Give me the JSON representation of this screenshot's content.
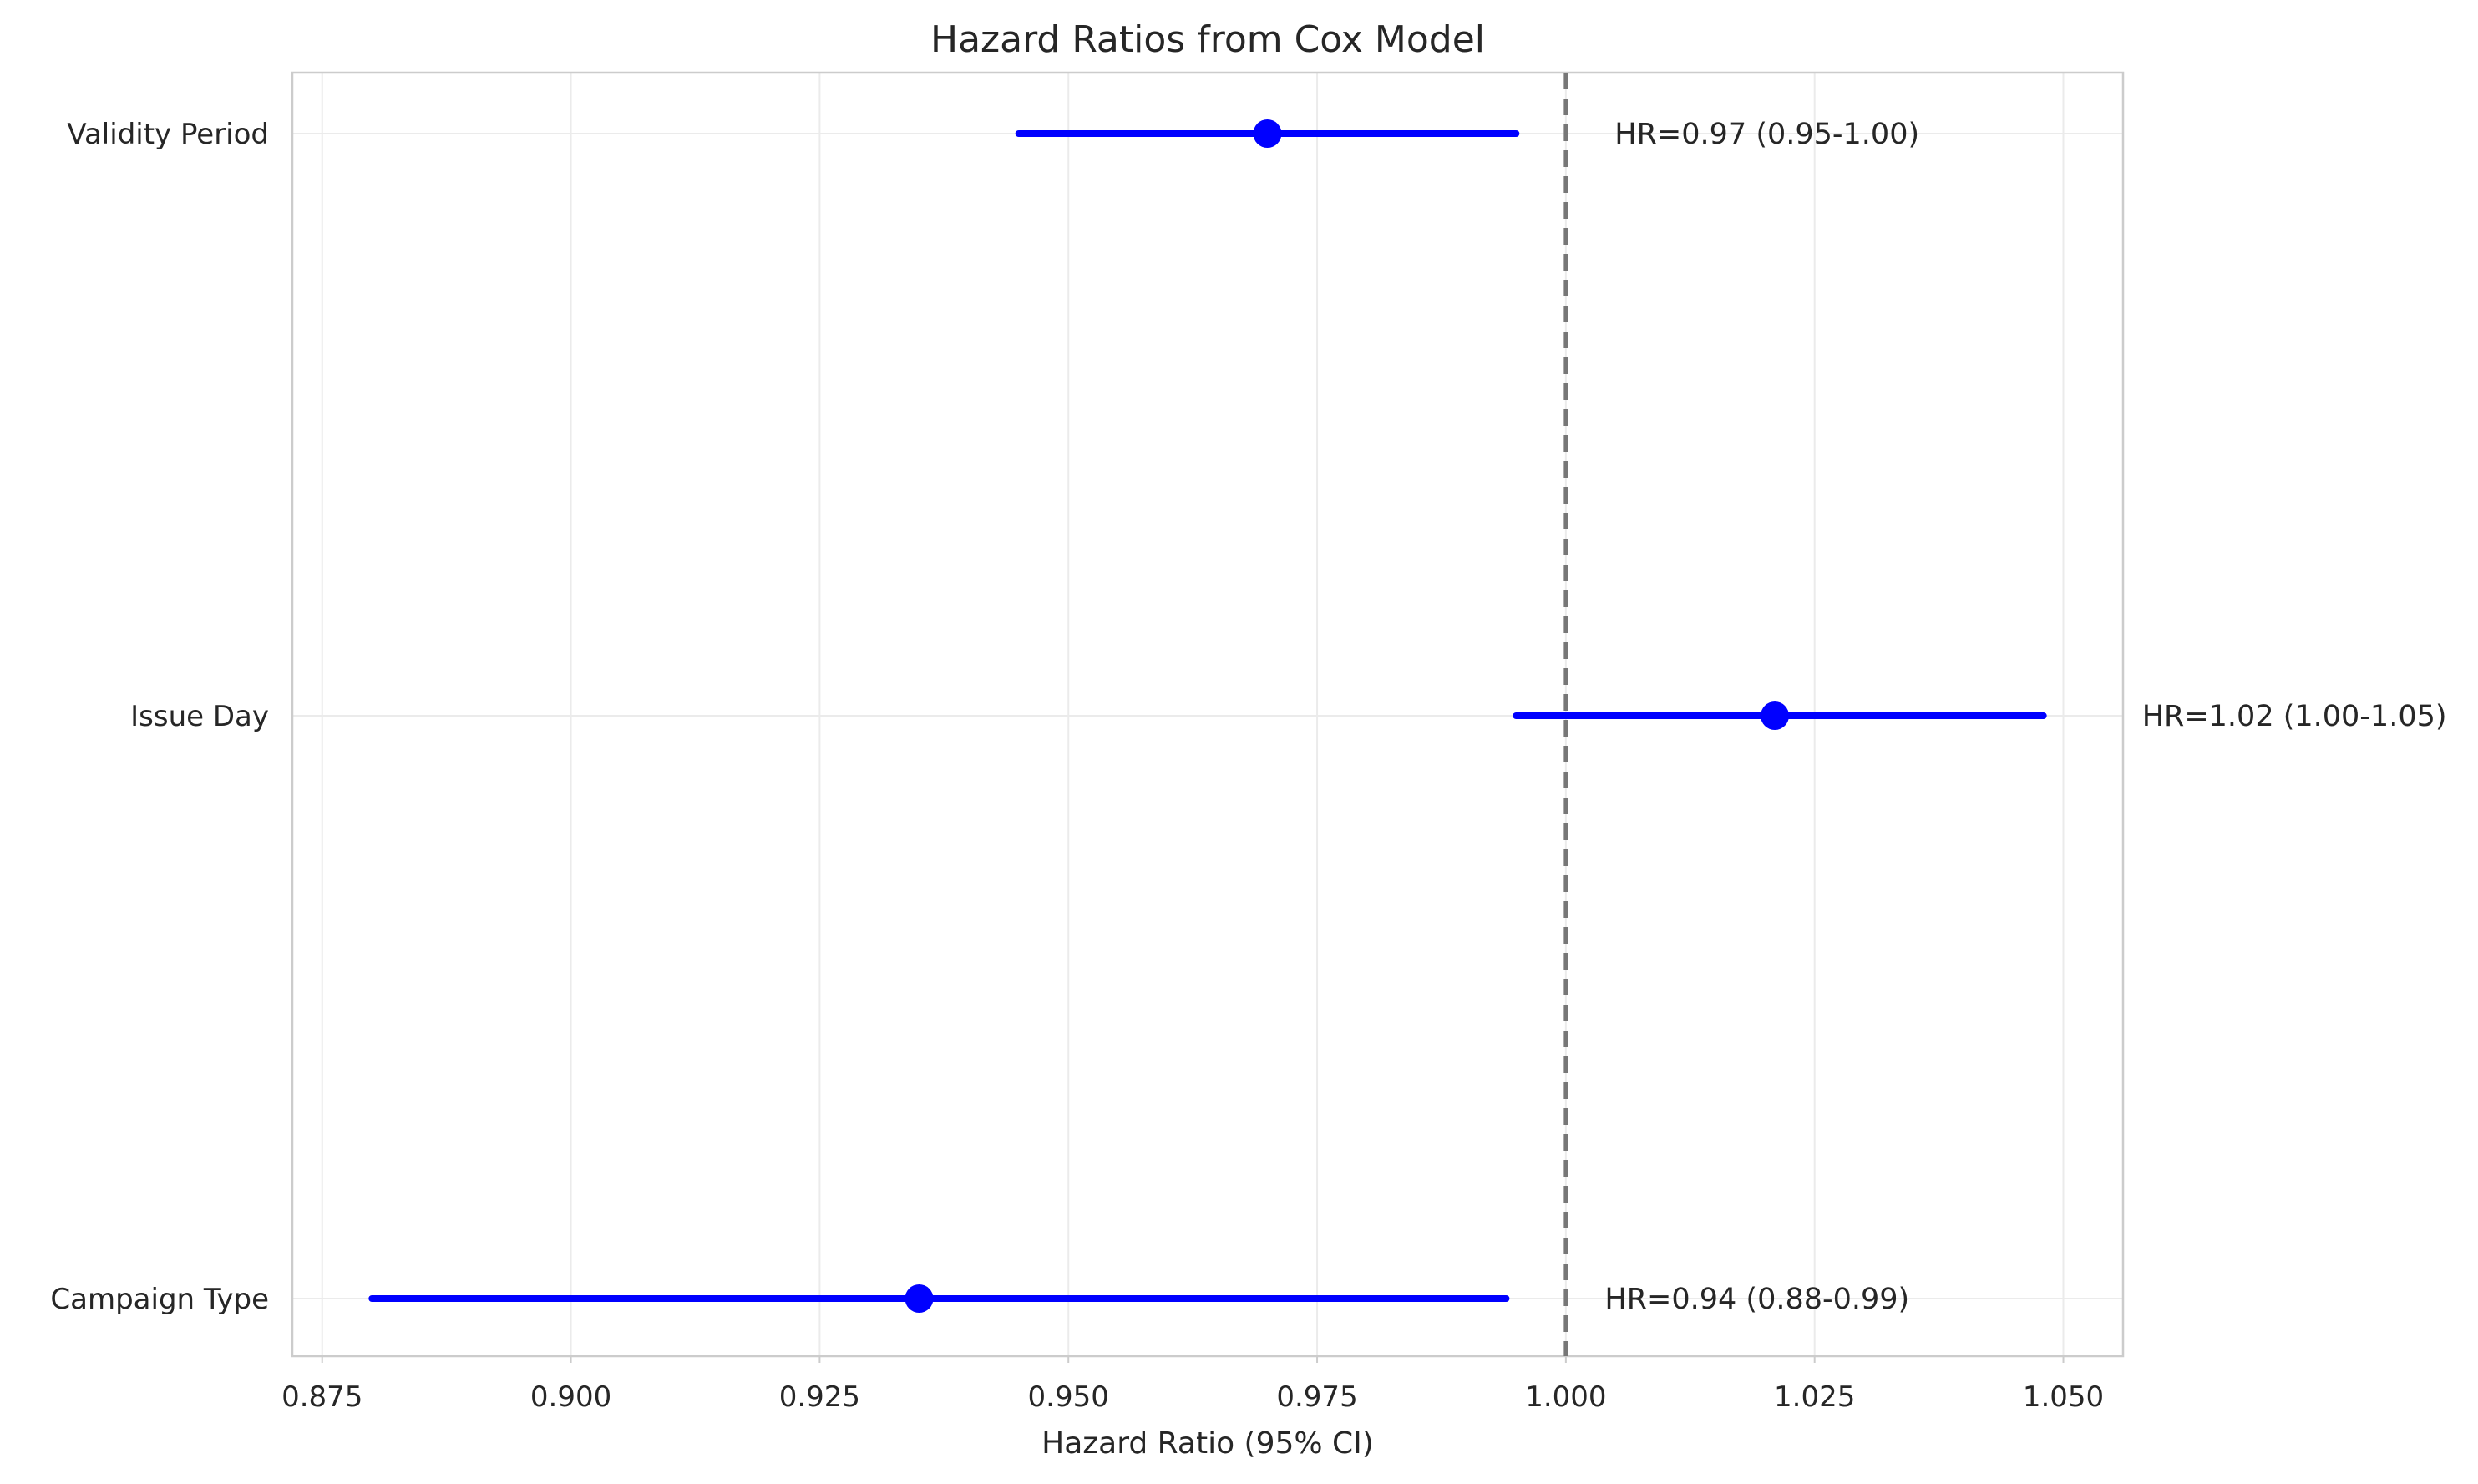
{
  "chart_data": {
    "type": "forest",
    "title": "Hazard Ratios from Cox Model",
    "xlabel": "Hazard Ratio (95% CI)",
    "ylabel": "",
    "xlim": [
      0.872,
      1.056
    ],
    "xticks": [
      0.875,
      0.9,
      0.925,
      0.95,
      0.975,
      1.0,
      1.025,
      1.05
    ],
    "xtick_labels": [
      "0.875",
      "0.900",
      "0.925",
      "0.950",
      "0.975",
      "1.000",
      "1.025",
      "1.050"
    ],
    "reference_line": 1.0,
    "grid": true,
    "rows": [
      {
        "label": "Validity Period",
        "hr": 0.97,
        "lower": 0.945,
        "upper": 0.995,
        "annotation": "HR=0.97 (0.95-1.00)"
      },
      {
        "label": "Issue Day",
        "hr": 1.021,
        "lower": 0.995,
        "upper": 1.048,
        "annotation": "HR=1.02 (1.00-1.05)"
      },
      {
        "label": "Campaign Type",
        "hr": 0.935,
        "lower": 0.88,
        "upper": 0.994,
        "annotation": "HR=0.94 (0.88-0.99)"
      }
    ],
    "colors": {
      "marker": "#0000ff",
      "reference": "#777777",
      "grid": "#ebebeb",
      "frame": "#cccccc"
    }
  }
}
